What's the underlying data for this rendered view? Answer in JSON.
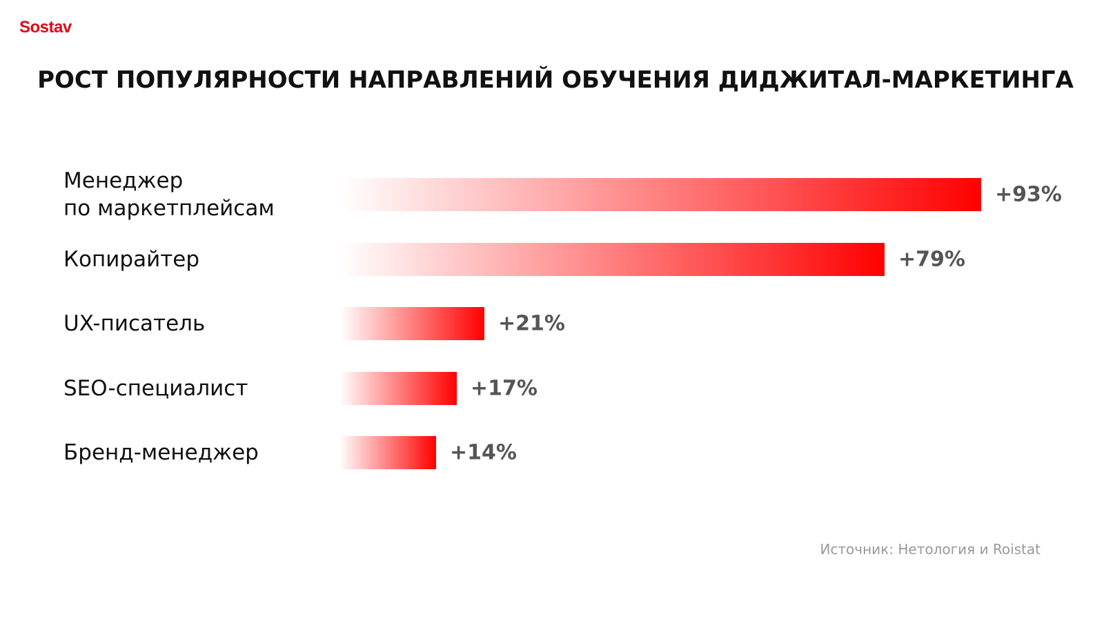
{
  "brand": "Sostav",
  "chart_data": {
    "type": "bar",
    "orientation": "horizontal",
    "title": "РОСТ ПОПУЛЯРНОСТИ НАПРАВЛЕНИЙ ОБУЧЕНИЯ ДИДЖИТАЛ-МАРКЕТИНГА",
    "categories": [
      "Менеджер\nпо маркетплейсам",
      "Копирайтер",
      "UX-писатель",
      "SEO-специалист",
      "Бренд-менеджер"
    ],
    "values": [
      93,
      79,
      21,
      17,
      14
    ],
    "value_labels": [
      "+93%",
      "+79%",
      "+21%",
      "+17%",
      "+14%"
    ],
    "color": "#ff0000",
    "source": "Источник: Нетология и Roistat"
  }
}
